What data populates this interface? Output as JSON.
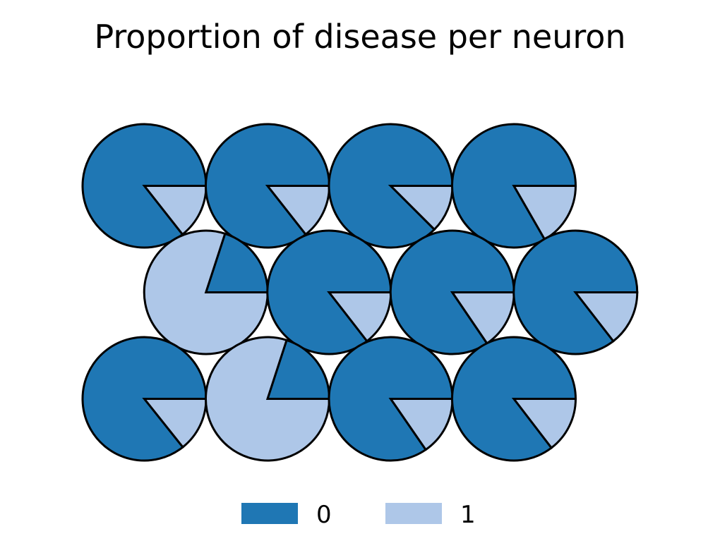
{
  "chart_data": {
    "type": "pie",
    "title": "Proportion of disease per neuron",
    "layout": "hexagonal-grid",
    "rows": 3,
    "categories": [
      "0",
      "1"
    ],
    "colors": {
      "0": "#1f77b4",
      "1": "#aec7e8",
      "outline": "#000000"
    },
    "legend": {
      "placement": "bottom-center",
      "entries": [
        {
          "label": "0",
          "color": "#1f77b4"
        },
        {
          "label": "1",
          "color": "#aec7e8"
        }
      ]
    },
    "neurons": [
      {
        "row": 0,
        "col": 0,
        "values": {
          "0": 0.856,
          "1": 0.144
        }
      },
      {
        "row": 0,
        "col": 1,
        "values": {
          "0": 0.856,
          "1": 0.144
        }
      },
      {
        "row": 0,
        "col": 2,
        "values": {
          "0": 0.875,
          "1": 0.125
        }
      },
      {
        "row": 0,
        "col": 3,
        "values": {
          "0": 0.833,
          "1": 0.167
        }
      },
      {
        "row": 1,
        "col": 0,
        "values": {
          "0": 0.2,
          "1": 0.8
        }
      },
      {
        "row": 1,
        "col": 1,
        "values": {
          "0": 0.855,
          "1": 0.145
        }
      },
      {
        "row": 1,
        "col": 2,
        "values": {
          "0": 0.845,
          "1": 0.155
        }
      },
      {
        "row": 1,
        "col": 3,
        "values": {
          "0": 0.855,
          "1": 0.145
        }
      },
      {
        "row": 2,
        "col": 0,
        "values": {
          "0": 0.857,
          "1": 0.143
        }
      },
      {
        "row": 2,
        "col": 1,
        "values": {
          "0": 0.2,
          "1": 0.8
        }
      },
      {
        "row": 2,
        "col": 2,
        "values": {
          "0": 0.846,
          "1": 0.154
        }
      },
      {
        "row": 2,
        "col": 3,
        "values": {
          "0": 0.854,
          "1": 0.146
        }
      }
    ]
  }
}
